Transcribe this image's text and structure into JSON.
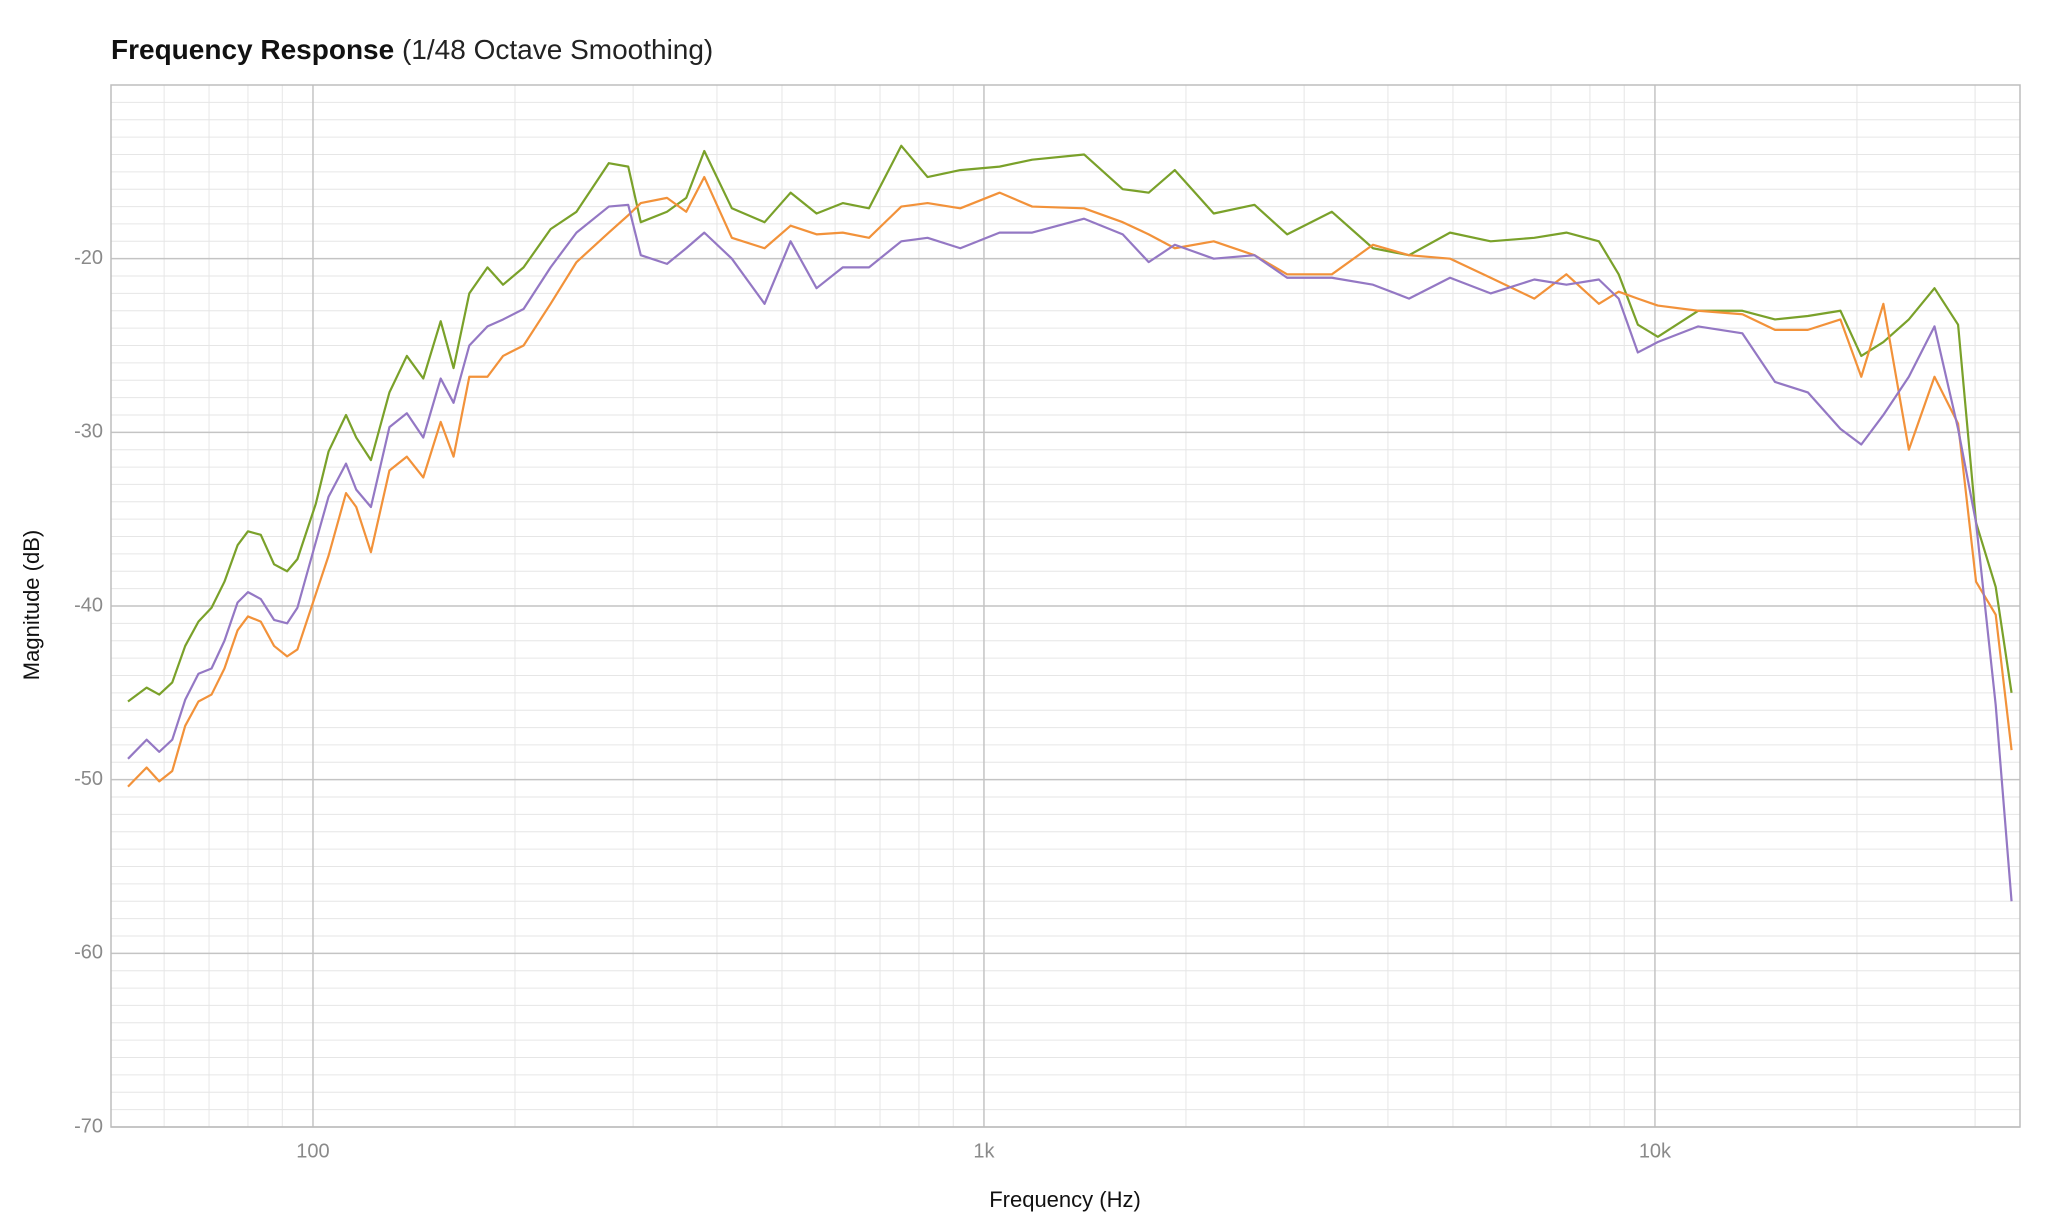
{
  "chart_data": {
    "type": "line",
    "title": "Frequency Response",
    "subtitle": "(1/48 Octave Smoothing)",
    "x_label": "Frequency (Hz)",
    "y_label": "Magnitude (dB)",
    "xscale": "log",
    "grid": true,
    "xlim": [
      50,
      35000
    ],
    "ylim": [
      -70,
      -10
    ],
    "xticks": [
      100,
      {
        "value": 1000,
        "label": "1k"
      },
      {
        "value": 10000,
        "label": "10k"
      }
    ],
    "xminorticks": [
      60,
      70,
      80,
      90,
      200,
      300,
      400,
      500,
      600,
      700,
      800,
      900,
      2000,
      3000,
      4000,
      5000,
      6000,
      7000,
      8000,
      9000,
      20000,
      30000
    ],
    "yticks": [
      -70,
      -60,
      -50,
      -40,
      -30,
      -20
    ],
    "yminorticks": [
      -69,
      -68,
      -67,
      -66,
      -65,
      -64,
      -63,
      -62,
      -61,
      -59,
      -58,
      -57,
      -56,
      -55,
      -54,
      -53,
      -52,
      -51,
      -49,
      -48,
      -47,
      -46,
      -45,
      -44,
      -43,
      -42,
      -41,
      -39,
      -38,
      -37,
      -36,
      -35,
      -34,
      -33,
      -32,
      -31,
      -29,
      -28,
      -27,
      -26,
      -25,
      -24,
      -23,
      -22,
      -21,
      -19,
      -18,
      -17,
      -16,
      -15,
      -14,
      -13,
      -12,
      -11
    ],
    "x": [
      53,
      56.5,
      59,
      61.7,
      64.5,
      67.5,
      70.6,
      73.8,
      77.2,
      80,
      83.6,
      87.5,
      91.5,
      94.8,
      101,
      105.5,
      112,
      116,
      122,
      130,
      138,
      146,
      155,
      162,
      171,
      182,
      192,
      206,
      226,
      247,
      276,
      295,
      308,
      337,
      360,
      383,
      421,
      471,
      515,
      563,
      616,
      674,
      753,
      824,
      922,
      1055,
      1180,
      1410,
      1610,
      1760,
      1925,
      2200,
      2530,
      2830,
      3300,
      3800,
      4300,
      4950,
      5690,
      6610,
      7380,
      8250,
      8830,
      9430,
      10100,
      11600,
      13500,
      15100,
      16900,
      18900,
      20300,
      21900,
      23900,
      26100,
      28300,
      30100,
      32200,
      34000
    ],
    "series": [
      {
        "color": "#7aa12a",
        "values": [
          -45.5,
          -44.7,
          -45.1,
          -44.4,
          -42.3,
          -40.9,
          -40.1,
          -38.6,
          -36.5,
          -35.7,
          -35.9,
          -37.6,
          -38.0,
          -37.3,
          -34.1,
          -31.1,
          -29.0,
          -30.3,
          -31.6,
          -27.7,
          -25.6,
          -26.9,
          -23.6,
          -26.3,
          -22.0,
          -20.5,
          -21.5,
          -20.5,
          -18.3,
          -17.3,
          -14.5,
          -14.7,
          -17.9,
          -17.3,
          -16.5,
          -13.8,
          -17.1,
          -17.9,
          -16.2,
          -17.4,
          -16.8,
          -17.1,
          -13.5,
          -15.3,
          -14.9,
          -14.7,
          -14.3,
          -14.0,
          -16.0,
          -16.2,
          -14.9,
          -17.4,
          -16.9,
          -18.6,
          -17.3,
          -19.4,
          -19.8,
          -18.5,
          -19.0,
          -18.8,
          -18.5,
          -19.0,
          -20.9,
          -23.8,
          -24.5,
          -23.0,
          -23.0,
          -23.5,
          -23.3,
          -23.0,
          -25.6,
          -24.8,
          -23.5,
          -21.7,
          -23.8,
          -35.2,
          -38.9,
          -45.0
        ]
      },
      {
        "color": "#f2923a",
        "values": [
          -50.4,
          -49.3,
          -50.1,
          -49.5,
          -46.9,
          -45.5,
          -45.1,
          -43.6,
          -41.4,
          -40.6,
          -40.9,
          -42.3,
          -42.9,
          -42.5,
          -39.3,
          -37.1,
          -33.5,
          -34.3,
          -36.9,
          -32.2,
          -31.4,
          -32.6,
          -29.4,
          -31.4,
          -26.8,
          -26.8,
          -25.6,
          -25.0,
          -22.6,
          -20.2,
          -18.5,
          -17.5,
          -16.8,
          -16.5,
          -17.3,
          -15.3,
          -18.8,
          -19.4,
          -18.1,
          -18.6,
          -18.5,
          -18.8,
          -17.0,
          -16.8,
          -17.1,
          -16.2,
          -17.0,
          -17.1,
          -17.9,
          -18.6,
          -19.4,
          -19.0,
          -19.8,
          -20.9,
          -20.9,
          -19.2,
          -19.8,
          -20.0,
          -21.1,
          -22.3,
          -20.9,
          -22.6,
          -21.9,
          -22.3,
          -22.7,
          -23.0,
          -23.2,
          -24.1,
          -24.1,
          -23.5,
          -26.8,
          -22.6,
          -31.0,
          -26.8,
          -29.5,
          -38.6,
          -40.5,
          -48.3
        ]
      },
      {
        "color": "#9478c4",
        "values": [
          -48.8,
          -47.7,
          -48.4,
          -47.7,
          -45.4,
          -43.9,
          -43.6,
          -42.0,
          -39.8,
          -39.2,
          -39.6,
          -40.8,
          -41.0,
          -40.1,
          -36.3,
          -33.7,
          -31.8,
          -33.3,
          -34.3,
          -29.7,
          -28.9,
          -30.3,
          -26.9,
          -28.3,
          -25.0,
          -23.9,
          -23.5,
          -22.9,
          -20.5,
          -18.5,
          -17.0,
          -16.9,
          -19.8,
          -20.3,
          -19.4,
          -18.5,
          -20.0,
          -22.6,
          -19.0,
          -21.7,
          -20.5,
          -20.5,
          -19.0,
          -18.8,
          -19.4,
          -18.5,
          -18.5,
          -17.7,
          -18.6,
          -20.2,
          -19.2,
          -20.0,
          -19.8,
          -21.1,
          -21.1,
          -21.5,
          -22.3,
          -21.1,
          -22.0,
          -21.2,
          -21.5,
          -21.2,
          -22.3,
          -25.4,
          -24.8,
          -23.9,
          -24.3,
          -27.1,
          -27.7,
          -29.8,
          -30.7,
          -29.0,
          -26.8,
          -23.9,
          -29.8,
          -35.2,
          -45.7,
          -57.0
        ]
      }
    ]
  }
}
